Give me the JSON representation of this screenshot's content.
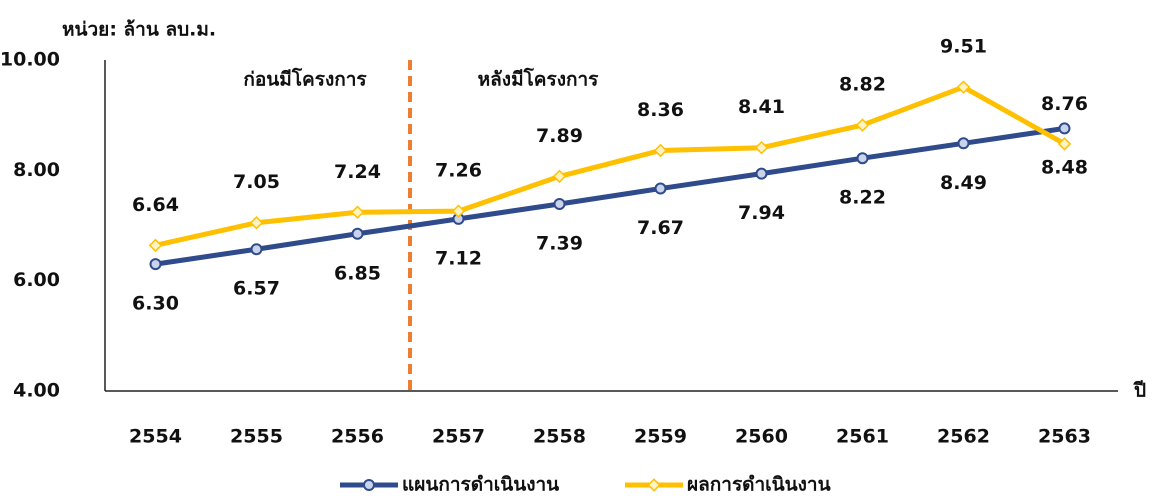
{
  "chart_data": {
    "type": "line",
    "y_unit_label": "หน่วย: ล้าน ลบ.ม.",
    "x_axis_label": "ปี",
    "annotations": [
      "ก่อนมีโครงการ",
      "หลังมีโครงการ"
    ],
    "categories": [
      "2554",
      "2555",
      "2556",
      "2557",
      "2558",
      "2559",
      "2560",
      "2561",
      "2562",
      "2563"
    ],
    "series": [
      {
        "name": "แผนการดำเนินงาน",
        "color": "#2f4b8c",
        "values": [
          6.3,
          6.57,
          6.85,
          7.12,
          7.39,
          7.67,
          7.94,
          8.22,
          8.49,
          8.76
        ],
        "value_labels": [
          "6.30",
          "6.57",
          "6.85",
          "7.12",
          "7.39",
          "7.67",
          "7.94",
          "8.22",
          "8.49",
          "8.76"
        ]
      },
      {
        "name": "ผลการดำเนินงาน",
        "color": "#ffc000",
        "values": [
          6.64,
          7.05,
          7.24,
          7.26,
          7.89,
          8.36,
          8.41,
          8.82,
          9.51,
          8.48
        ],
        "value_labels": [
          "6.64",
          "7.05",
          "7.24",
          "7.26",
          "7.89",
          "8.36",
          "8.41",
          "8.82",
          "9.51",
          "8.48"
        ]
      }
    ],
    "ylim": [
      4,
      10
    ],
    "yticks": [
      {
        "value": 4,
        "label": "4.00"
      },
      {
        "value": 6,
        "label": "6.00"
      },
      {
        "value": 8,
        "label": "8.00"
      },
      {
        "value": 10,
        "label": "10.00"
      }
    ],
    "grid": false,
    "legend": "bottom"
  }
}
